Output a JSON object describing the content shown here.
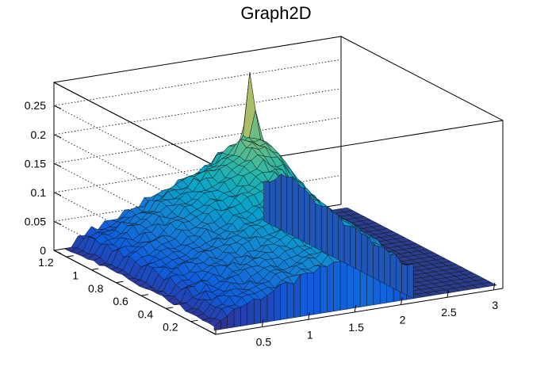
{
  "chart_data": {
    "type": "surface",
    "title": "Graph2D",
    "xlabel": "",
    "ylabel": "",
    "zlabel": "",
    "xlim": [
      0,
      3.1
    ],
    "ylim": [
      0,
      1.3
    ],
    "zlim": [
      0,
      0.29
    ],
    "x_ticks": [
      {
        "value": 0.5,
        "label": "0.5"
      },
      {
        "value": 1,
        "label": "1"
      },
      {
        "value": 1.5,
        "label": "1.5"
      },
      {
        "value": 2,
        "label": "2"
      },
      {
        "value": 2.5,
        "label": "2.5"
      },
      {
        "value": 3,
        "label": "3"
      }
    ],
    "y_ticks": [
      {
        "value": 0.2,
        "label": "0.2"
      },
      {
        "value": 0.4,
        "label": "0.4"
      },
      {
        "value": 0.6,
        "label": "0.6"
      },
      {
        "value": 0.8,
        "label": "0.8"
      },
      {
        "value": 1,
        "label": "1"
      },
      {
        "value": 1.2,
        "label": "1.2"
      }
    ],
    "z_ticks": [
      {
        "value": 0,
        "label": "0"
      },
      {
        "value": 0.05,
        "label": "0.05"
      },
      {
        "value": 0.1,
        "label": "0.1"
      },
      {
        "value": 0.15,
        "label": "0.15"
      },
      {
        "value": 0.2,
        "label": "0.2"
      },
      {
        "value": 0.25,
        "label": "0.25"
      }
    ],
    "grid": true,
    "palette": [
      "#352a87",
      "#0f5cdd",
      "#1481d6",
      "#06a4ca",
      "#2eb7a4",
      "#87bf77",
      "#d1bb59",
      "#fec832",
      "#f9fb0e"
    ],
    "surface": {
      "description_of_shape": "z rises with x up to about x=1.5–2.2 near y=1.0–1.25, sharp spikes up to ~0.29 at x≈2, y≈1.2; zero for x>2.2",
      "peak_points": [
        {
          "x": 2.0,
          "y": 1.2,
          "z": 0.29
        },
        {
          "x": 1.95,
          "y": 1.15,
          "z": 0.27
        },
        {
          "x": 2.05,
          "y": 1.25,
          "z": 0.25
        }
      ],
      "zero_region": {
        "x_min": 2.2,
        "x_max": 3.1
      }
    }
  }
}
